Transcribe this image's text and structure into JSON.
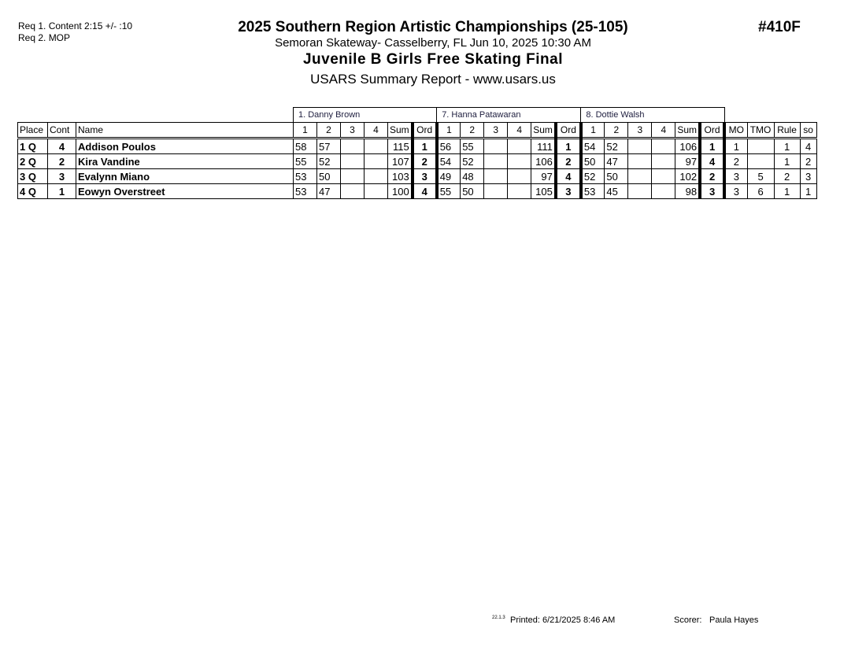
{
  "header": {
    "req1": "Req 1.  Content 2:15 +/- :10",
    "req2": "Req 2.  MOP",
    "title": "2025 Southern Region Artistic Championships (25-105)",
    "venue": "Semoran Skateway- Casselberry, FL  Jun 10, 2025  10:30 AM",
    "event_name": "Juvenile B Girls Free Skating Final",
    "report": "USARS Summary Report - www.usars.us",
    "event_number": "#410F"
  },
  "judges": [
    "1.  Danny Brown",
    "7.  Hanna Patawaran",
    "8.  Dottie  Walsh"
  ],
  "columns": {
    "place": "Place",
    "cont": "Cont",
    "name": "Name",
    "judge_cols": [
      "1",
      "2",
      "3",
      "4",
      "Sum",
      "Ord"
    ],
    "mo": "MO",
    "tmo": "TMO",
    "rule": "Rule",
    "so": "so"
  },
  "rows": [
    {
      "place": "1 Q",
      "cont": "4",
      "name": "Addison Poulos",
      "j": [
        [
          "58",
          "57",
          "",
          "",
          "115",
          "1"
        ],
        [
          "56",
          "55",
          "",
          "",
          "111",
          "1"
        ],
        [
          "54",
          "52",
          "",
          "",
          "106",
          "1"
        ]
      ],
      "mo": "1",
      "tmo": "",
      "rule": "1",
      "so": "4"
    },
    {
      "place": "2 Q",
      "cont": "2",
      "name": "Kira Vandine",
      "j": [
        [
          "55",
          "52",
          "",
          "",
          "107",
          "2"
        ],
        [
          "54",
          "52",
          "",
          "",
          "106",
          "2"
        ],
        [
          "50",
          "47",
          "",
          "",
          "97",
          "4"
        ]
      ],
      "mo": "2",
      "tmo": "",
      "rule": "1",
      "so": "2"
    },
    {
      "place": "3 Q",
      "cont": "3",
      "name": "Evalynn Miano",
      "j": [
        [
          "53",
          "50",
          "",
          "",
          "103",
          "3"
        ],
        [
          "49",
          "48",
          "",
          "",
          "97",
          "4"
        ],
        [
          "52",
          "50",
          "",
          "",
          "102",
          "2"
        ]
      ],
      "mo": "3",
      "tmo": "5",
      "rule": "2",
      "so": "3"
    },
    {
      "place": "4 Q",
      "cont": "1",
      "name": "Eowyn Overstreet",
      "j": [
        [
          "53",
          "47",
          "",
          "",
          "100",
          "4"
        ],
        [
          "55",
          "50",
          "",
          "",
          "105",
          "3"
        ],
        [
          "53",
          "45",
          "",
          "",
          "98",
          "3"
        ]
      ],
      "mo": "3",
      "tmo": "6",
      "rule": "1",
      "so": "1"
    }
  ],
  "footer": {
    "version": "22.1.3",
    "printed": "Printed:  6/21/2025  8:46 AM",
    "scorer_label": "Scorer:",
    "scorer": "Paula Hayes"
  }
}
